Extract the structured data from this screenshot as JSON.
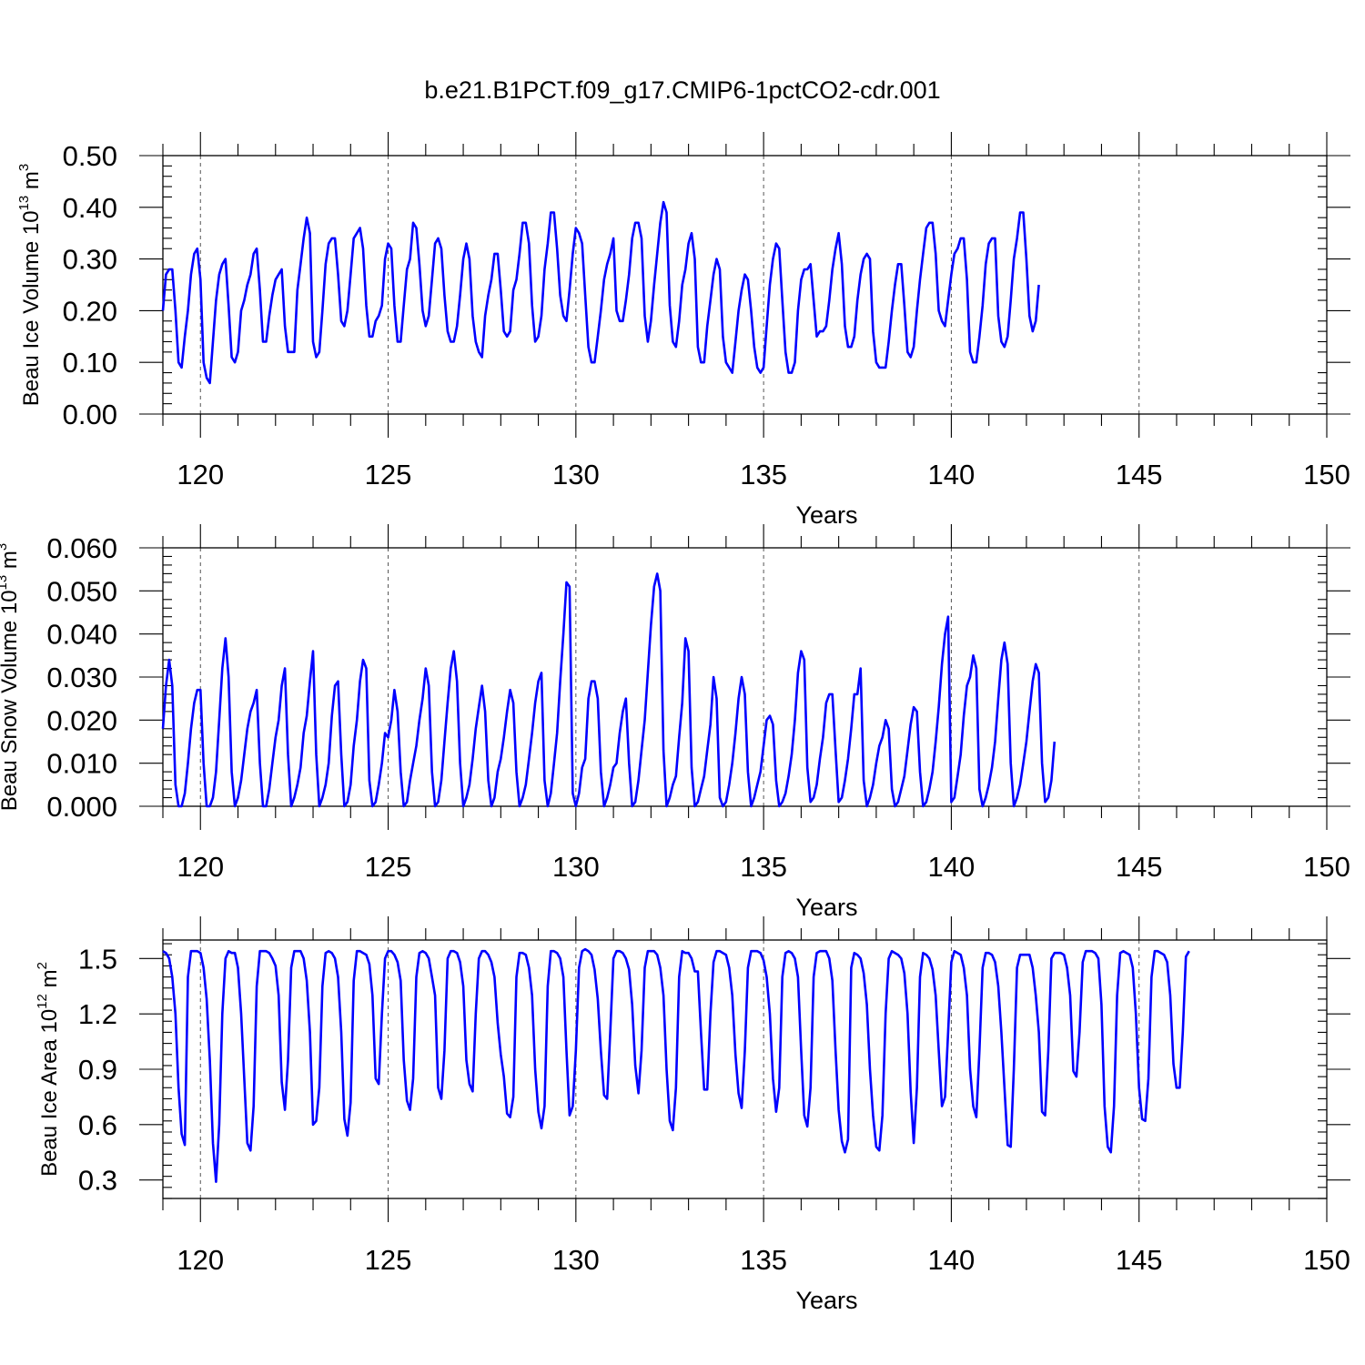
{
  "title": "b.e21.B1PCT.f09_g17.CMIP6-1pctCO2-cdr.001",
  "colors": {
    "line": "#0000ff",
    "axis": "#000000",
    "grid": "#555555",
    "background": "#ffffff"
  },
  "chart_data": [
    {
      "type": "line",
      "ylabel": {
        "main": "Beau Ice Volume 10",
        "exp": "13",
        "unit": " m",
        "unit_exp": "3"
      },
      "xlabel": "Years",
      "xlim": [
        119.0,
        150.0
      ],
      "ylim": [
        0.0,
        0.5
      ],
      "yticks": [
        0.0,
        0.1,
        0.2,
        0.3,
        0.4,
        0.5
      ],
      "ytick_labels": [
        "0.00",
        "0.10",
        "0.20",
        "0.30",
        "0.40",
        "0.50"
      ],
      "xticks": [
        120,
        125,
        130,
        135,
        140,
        145,
        150
      ],
      "xtick_labels": [
        "120",
        "125",
        "130",
        "135",
        "140",
        "145",
        "150"
      ],
      "grid_x": true,
      "series": [
        {
          "x_start": 119.0,
          "x_step": 0.08333,
          "values": [
            0.2,
            0.27,
            0.28,
            0.28,
            0.2,
            0.1,
            0.09,
            0.15,
            0.2,
            0.27,
            0.31,
            0.32,
            0.26,
            0.1,
            0.07,
            0.06,
            0.14,
            0.22,
            0.27,
            0.29,
            0.3,
            0.21,
            0.11,
            0.1,
            0.12,
            0.2,
            0.22,
            0.25,
            0.27,
            0.31,
            0.32,
            0.24,
            0.14,
            0.14,
            0.19,
            0.23,
            0.26,
            0.27,
            0.28,
            0.17,
            0.12,
            0.12,
            0.12,
            0.24,
            0.29,
            0.34,
            0.38,
            0.35,
            0.14,
            0.11,
            0.12,
            0.2,
            0.29,
            0.33,
            0.34,
            0.34,
            0.27,
            0.18,
            0.17,
            0.2,
            0.27,
            0.34,
            0.35,
            0.36,
            0.32,
            0.21,
            0.15,
            0.15,
            0.18,
            0.19,
            0.21,
            0.3,
            0.33,
            0.32,
            0.21,
            0.14,
            0.14,
            0.21,
            0.28,
            0.3,
            0.37,
            0.36,
            0.29,
            0.2,
            0.17,
            0.19,
            0.26,
            0.33,
            0.34,
            0.32,
            0.23,
            0.16,
            0.14,
            0.14,
            0.17,
            0.23,
            0.3,
            0.33,
            0.3,
            0.19,
            0.14,
            0.12,
            0.11,
            0.19,
            0.23,
            0.26,
            0.31,
            0.31,
            0.24,
            0.16,
            0.15,
            0.16,
            0.24,
            0.26,
            0.31,
            0.37,
            0.37,
            0.33,
            0.21,
            0.14,
            0.15,
            0.19,
            0.28,
            0.33,
            0.39,
            0.39,
            0.32,
            0.23,
            0.19,
            0.18,
            0.24,
            0.31,
            0.36,
            0.35,
            0.33,
            0.23,
            0.13,
            0.1,
            0.1,
            0.15,
            0.2,
            0.26,
            0.29,
            0.31,
            0.34,
            0.2,
            0.18,
            0.18,
            0.22,
            0.27,
            0.34,
            0.37,
            0.37,
            0.34,
            0.19,
            0.14,
            0.18,
            0.25,
            0.31,
            0.37,
            0.41,
            0.39,
            0.21,
            0.14,
            0.13,
            0.18,
            0.25,
            0.28,
            0.33,
            0.35,
            0.3,
            0.13,
            0.1,
            0.1,
            0.17,
            0.22,
            0.27,
            0.3,
            0.28,
            0.15,
            0.1,
            0.09,
            0.08,
            0.14,
            0.2,
            0.24,
            0.27,
            0.26,
            0.2,
            0.13,
            0.09,
            0.08,
            0.09,
            0.17,
            0.25,
            0.3,
            0.33,
            0.32,
            0.22,
            0.12,
            0.08,
            0.08,
            0.1,
            0.2,
            0.26,
            0.28,
            0.28,
            0.29,
            0.22,
            0.15,
            0.16,
            0.16,
            0.17,
            0.22,
            0.28,
            0.32,
            0.35,
            0.29,
            0.17,
            0.13,
            0.13,
            0.15,
            0.22,
            0.27,
            0.3,
            0.31,
            0.3,
            0.16,
            0.1,
            0.09,
            0.09,
            0.09,
            0.14,
            0.2,
            0.25,
            0.29,
            0.29,
            0.21,
            0.12,
            0.11,
            0.13,
            0.2,
            0.26,
            0.31,
            0.36,
            0.37,
            0.37,
            0.31,
            0.2,
            0.18,
            0.17,
            0.22,
            0.27,
            0.31,
            0.32,
            0.34,
            0.34,
            0.26,
            0.12,
            0.1,
            0.1,
            0.15,
            0.21,
            0.29,
            0.33,
            0.34,
            0.34,
            0.19,
            0.14,
            0.13,
            0.15,
            0.22,
            0.3,
            0.34,
            0.39,
            0.39,
            0.3,
            0.19,
            0.16,
            0.18,
            0.25
          ]
        }
      ]
    },
    {
      "type": "line",
      "ylabel": {
        "main": "Beau Snow Volume 10",
        "exp": "13",
        "unit": " m",
        "unit_exp": "3"
      },
      "xlabel": "Years",
      "xlim": [
        119.0,
        150.0
      ],
      "ylim": [
        0.0,
        0.06
      ],
      "yticks": [
        0.0,
        0.01,
        0.02,
        0.03,
        0.04,
        0.05,
        0.06
      ],
      "ytick_labels": [
        "0.000",
        "0.010",
        "0.020",
        "0.030",
        "0.040",
        "0.050",
        "0.060"
      ],
      "xticks": [
        120,
        125,
        130,
        135,
        140,
        145,
        150
      ],
      "xtick_labels": [
        "120",
        "125",
        "130",
        "135",
        "140",
        "145",
        "150"
      ],
      "grid_x": true,
      "series": [
        {
          "x_start": 119.0,
          "x_step": 0.08333,
          "values": [
            0.018,
            0.028,
            0.034,
            0.028,
            0.005,
            0.0,
            0.0,
            0.003,
            0.01,
            0.018,
            0.024,
            0.027,
            0.027,
            0.01,
            0.0,
            0.0,
            0.002,
            0.008,
            0.02,
            0.032,
            0.039,
            0.03,
            0.008,
            0.0,
            0.002,
            0.006,
            0.012,
            0.018,
            0.022,
            0.024,
            0.027,
            0.01,
            0.0,
            0.0,
            0.004,
            0.01,
            0.016,
            0.02,
            0.028,
            0.032,
            0.012,
            0.0,
            0.002,
            0.005,
            0.009,
            0.017,
            0.021,
            0.029,
            0.036,
            0.012,
            0.0,
            0.002,
            0.005,
            0.01,
            0.021,
            0.028,
            0.029,
            0.012,
            0.0,
            0.001,
            0.005,
            0.014,
            0.02,
            0.029,
            0.034,
            0.032,
            0.006,
            0.0,
            0.001,
            0.005,
            0.01,
            0.017,
            0.016,
            0.02,
            0.027,
            0.022,
            0.008,
            0.0,
            0.001,
            0.006,
            0.01,
            0.014,
            0.02,
            0.025,
            0.032,
            0.028,
            0.008,
            0.0,
            0.001,
            0.006,
            0.015,
            0.024,
            0.032,
            0.036,
            0.029,
            0.01,
            0.0,
            0.002,
            0.005,
            0.011,
            0.018,
            0.023,
            0.028,
            0.022,
            0.006,
            0.0,
            0.002,
            0.008,
            0.011,
            0.016,
            0.022,
            0.027,
            0.024,
            0.008,
            0.0,
            0.002,
            0.005,
            0.011,
            0.017,
            0.024,
            0.029,
            0.031,
            0.006,
            0.0,
            0.003,
            0.01,
            0.017,
            0.029,
            0.04,
            0.052,
            0.051,
            0.003,
            0.0,
            0.003,
            0.009,
            0.011,
            0.025,
            0.029,
            0.029,
            0.025,
            0.008,
            0.0,
            0.002,
            0.005,
            0.009,
            0.01,
            0.017,
            0.022,
            0.025,
            0.01,
            0.0,
            0.001,
            0.006,
            0.013,
            0.02,
            0.031,
            0.042,
            0.051,
            0.054,
            0.05,
            0.013,
            0.0,
            0.002,
            0.005,
            0.007,
            0.016,
            0.024,
            0.039,
            0.036,
            0.009,
            0.0,
            0.001,
            0.004,
            0.007,
            0.013,
            0.019,
            0.03,
            0.025,
            0.002,
            0.0,
            0.001,
            0.005,
            0.01,
            0.017,
            0.025,
            0.03,
            0.026,
            0.008,
            0.0,
            0.002,
            0.005,
            0.008,
            0.014,
            0.02,
            0.021,
            0.019,
            0.006,
            0.0,
            0.001,
            0.003,
            0.007,
            0.012,
            0.02,
            0.031,
            0.036,
            0.034,
            0.009,
            0.001,
            0.002,
            0.005,
            0.011,
            0.016,
            0.024,
            0.026,
            0.026,
            0.013,
            0.001,
            0.002,
            0.006,
            0.011,
            0.018,
            0.026,
            0.026,
            0.032,
            0.006,
            0.0,
            0.002,
            0.005,
            0.01,
            0.014,
            0.016,
            0.02,
            0.018,
            0.004,
            0.0,
            0.001,
            0.004,
            0.007,
            0.013,
            0.019,
            0.023,
            0.022,
            0.008,
            0.0,
            0.001,
            0.004,
            0.008,
            0.015,
            0.023,
            0.033,
            0.04,
            0.044,
            0.001,
            0.002,
            0.007,
            0.012,
            0.021,
            0.028,
            0.03,
            0.035,
            0.032,
            0.004,
            0.0,
            0.002,
            0.005,
            0.009,
            0.015,
            0.025,
            0.034,
            0.038,
            0.033,
            0.01,
            0.0,
            0.002,
            0.005,
            0.01,
            0.015,
            0.022,
            0.029,
            0.033,
            0.031,
            0.01,
            0.001,
            0.002,
            0.006,
            0.015
          ]
        }
      ]
    },
    {
      "type": "line",
      "ylabel": {
        "main": "Beau Ice Area 10",
        "exp": "12",
        "unit": " m",
        "unit_exp": "2"
      },
      "xlabel": "Years",
      "xlim": [
        119.0,
        150.0
      ],
      "ylim": [
        0.2,
        1.6
      ],
      "yticks": [
        0.3,
        0.6,
        0.9,
        1.2,
        1.5
      ],
      "ytick_labels": [
        "0.3",
        "0.6",
        "0.9",
        "1.2",
        "1.5"
      ],
      "xticks": [
        120,
        125,
        130,
        135,
        140,
        145,
        150
      ],
      "xtick_labels": [
        "120",
        "125",
        "130",
        "135",
        "140",
        "145",
        "150"
      ],
      "grid_x": true,
      "series": [
        {
          "x_start": 119.0,
          "x_step": 0.08333,
          "values": [
            1.54,
            1.53,
            1.5,
            1.4,
            1.2,
            0.8,
            0.55,
            0.49,
            1.4,
            1.54,
            1.54,
            1.54,
            1.53,
            1.45,
            1.28,
            0.95,
            0.5,
            0.29,
            0.6,
            1.2,
            1.5,
            1.54,
            1.53,
            1.53,
            1.45,
            1.2,
            0.85,
            0.5,
            0.46,
            0.7,
            1.35,
            1.54,
            1.54,
            1.54,
            1.53,
            1.5,
            1.46,
            1.3,
            0.83,
            0.68,
            0.95,
            1.45,
            1.54,
            1.54,
            1.54,
            1.5,
            1.38,
            1.1,
            0.6,
            0.62,
            0.8,
            1.35,
            1.53,
            1.54,
            1.53,
            1.5,
            1.4,
            1.1,
            0.63,
            0.54,
            0.72,
            1.38,
            1.54,
            1.54,
            1.53,
            1.52,
            1.47,
            1.3,
            0.85,
            0.82,
            1.2,
            1.5,
            1.54,
            1.54,
            1.52,
            1.48,
            1.38,
            0.95,
            0.73,
            0.68,
            0.85,
            1.4,
            1.53,
            1.54,
            1.53,
            1.5,
            1.4,
            1.3,
            0.8,
            0.74,
            1.0,
            1.5,
            1.54,
            1.54,
            1.53,
            1.48,
            1.35,
            0.95,
            0.82,
            0.78,
            1.2,
            1.5,
            1.54,
            1.54,
            1.52,
            1.48,
            1.4,
            1.15,
            0.98,
            0.86,
            0.66,
            0.64,
            0.75,
            1.4,
            1.53,
            1.53,
            1.52,
            1.45,
            1.3,
            0.9,
            0.67,
            0.58,
            0.7,
            1.35,
            1.54,
            1.54,
            1.53,
            1.5,
            1.4,
            1.0,
            0.65,
            0.7,
            1.0,
            1.45,
            1.54,
            1.55,
            1.54,
            1.52,
            1.44,
            1.28,
            1.0,
            0.76,
            0.74,
            1.1,
            1.5,
            1.54,
            1.54,
            1.53,
            1.5,
            1.44,
            1.25,
            0.92,
            0.77,
            1.0,
            1.45,
            1.54,
            1.54,
            1.54,
            1.52,
            1.45,
            1.3,
            0.9,
            0.62,
            0.57,
            0.8,
            1.4,
            1.54,
            1.53,
            1.53,
            1.5,
            1.43,
            1.43,
            1.1,
            0.79,
            0.79,
            1.2,
            1.48,
            1.54,
            1.54,
            1.53,
            1.52,
            1.45,
            1.3,
            0.98,
            0.77,
            0.69,
            1.0,
            1.45,
            1.54,
            1.54,
            1.54,
            1.53,
            1.49,
            1.4,
            1.2,
            0.85,
            0.67,
            0.8,
            1.4,
            1.53,
            1.54,
            1.53,
            1.5,
            1.4,
            1.0,
            0.65,
            0.59,
            0.8,
            1.4,
            1.53,
            1.54,
            1.54,
            1.54,
            1.5,
            1.38,
            1.0,
            0.68,
            0.51,
            0.45,
            0.52,
            1.45,
            1.53,
            1.52,
            1.5,
            1.42,
            1.25,
            0.9,
            0.65,
            0.48,
            0.46,
            0.65,
            1.2,
            1.5,
            1.54,
            1.53,
            1.52,
            1.5,
            1.42,
            1.2,
            0.78,
            0.5,
            0.8,
            1.4,
            1.53,
            1.52,
            1.5,
            1.44,
            1.3,
            1.0,
            0.7,
            0.75,
            1.1,
            1.48,
            1.54,
            1.53,
            1.52,
            1.45,
            1.3,
            0.9,
            0.7,
            0.64,
            1.0,
            1.45,
            1.53,
            1.53,
            1.52,
            1.48,
            1.35,
            1.1,
            0.8,
            0.49,
            0.48,
            0.9,
            1.45,
            1.52,
            1.52,
            1.52,
            1.52,
            1.45,
            1.3,
            1.1,
            0.67,
            0.65,
            1.0,
            1.5,
            1.53,
            1.53,
            1.53,
            1.52,
            1.45,
            1.3,
            0.89,
            0.86,
            1.1,
            1.48,
            1.54,
            1.54,
            1.54,
            1.53,
            1.5,
            1.25,
            0.7,
            0.48,
            0.45,
            0.7,
            1.3,
            1.53,
            1.54,
            1.53,
            1.52,
            1.45,
            1.2,
            0.8,
            0.63,
            0.62,
            0.85,
            1.4,
            1.54,
            1.54,
            1.53,
            1.52,
            1.48,
            1.3,
            0.93,
            0.8,
            0.8,
            1.1,
            1.51,
            1.54
          ]
        }
      ]
    }
  ]
}
